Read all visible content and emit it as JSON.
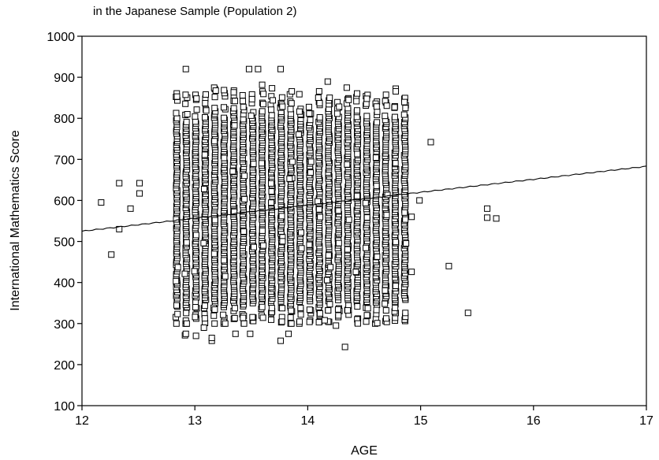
{
  "chart_data": {
    "type": "scatter",
    "title": "in the Japanese Sample (Population 2)",
    "xlabel": "AGE",
    "ylabel": "International Mathematics Score",
    "xlim": [
      12,
      17
    ],
    "ylim": [
      100,
      1000
    ],
    "xticks": [
      "12",
      "13",
      "14",
      "15",
      "16",
      "17"
    ],
    "yticks": [
      "100",
      "200",
      "300",
      "400",
      "500",
      "600",
      "700",
      "800",
      "900",
      "1000"
    ],
    "grid": false,
    "legend": "none",
    "outliers": [
      [
        12.17,
        595
      ],
      [
        12.26,
        468
      ],
      [
        12.33,
        530
      ],
      [
        12.33,
        642
      ],
      [
        12.43,
        580
      ],
      [
        12.51,
        642
      ],
      [
        12.51,
        617
      ],
      [
        12.92,
        920
      ],
      [
        13.48,
        920
      ],
      [
        13.56,
        920
      ],
      [
        13.76,
        920
      ],
      [
        12.92,
        275
      ],
      [
        13.01,
        270
      ],
      [
        13.15,
        258
      ],
      [
        13.15,
        265
      ],
      [
        13.08,
        290
      ],
      [
        13.36,
        275
      ],
      [
        13.49,
        275
      ],
      [
        13.76,
        258
      ],
      [
        13.83,
        275
      ],
      [
        14.33,
        243
      ],
      [
        14.25,
        295
      ],
      [
        14.15,
        308
      ],
      [
        14.92,
        560
      ],
      [
        14.92,
        426
      ],
      [
        14.99,
        600
      ],
      [
        15.09,
        742
      ],
      [
        15.25,
        440
      ],
      [
        15.42,
        326
      ],
      [
        15.59,
        580
      ],
      [
        15.59,
        558
      ],
      [
        15.67,
        556
      ]
    ],
    "fit_line": {
      "x": [
        12,
        17
      ],
      "y": [
        525,
        683
      ]
    },
    "band": {
      "x_min": 12.84,
      "x_max": 14.86,
      "columns": 25,
      "seed": 7,
      "y_center_start": 575,
      "y_center_end": 600
    }
  }
}
